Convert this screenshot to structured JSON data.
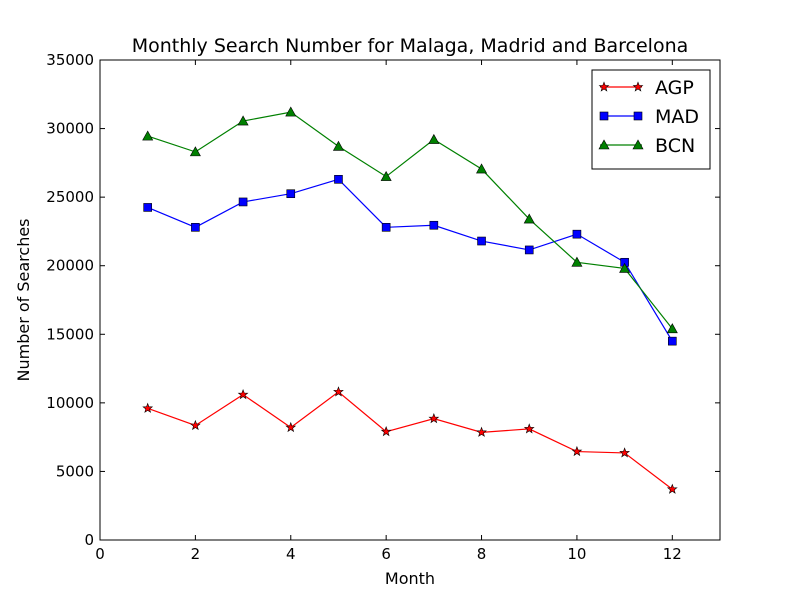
{
  "chart_data": {
    "type": "line",
    "title": "Monthly Search Number for Malaga, Madrid and Barcelona",
    "xlabel": "Month",
    "ylabel": "Number of Searches",
    "xlim": [
      0,
      13
    ],
    "ylim": [
      0,
      35000
    ],
    "xticks": [
      0,
      2,
      4,
      6,
      8,
      10,
      12
    ],
    "yticks": [
      0,
      5000,
      10000,
      15000,
      20000,
      25000,
      30000,
      35000
    ],
    "grid": false,
    "legend_position": "top-right",
    "x": [
      1,
      2,
      3,
      4,
      5,
      6,
      7,
      8,
      9,
      10,
      11,
      12
    ],
    "series": [
      {
        "name": "AGP",
        "color": "#ff0000",
        "marker": "star",
        "values": [
          9600,
          8350,
          10600,
          8200,
          10800,
          7900,
          8850,
          7850,
          8100,
          6450,
          6350,
          3700
        ]
      },
      {
        "name": "MAD",
        "color": "#0000ff",
        "marker": "square",
        "values": [
          24250,
          22800,
          24650,
          25250,
          26300,
          22800,
          22950,
          21800,
          21150,
          22300,
          20250,
          14500
        ]
      },
      {
        "name": "BCN",
        "color": "#008000",
        "marker": "triangle",
        "values": [
          29450,
          28300,
          30550,
          31200,
          28700,
          26500,
          29200,
          27050,
          23400,
          20250,
          19800,
          15400
        ]
      }
    ]
  }
}
